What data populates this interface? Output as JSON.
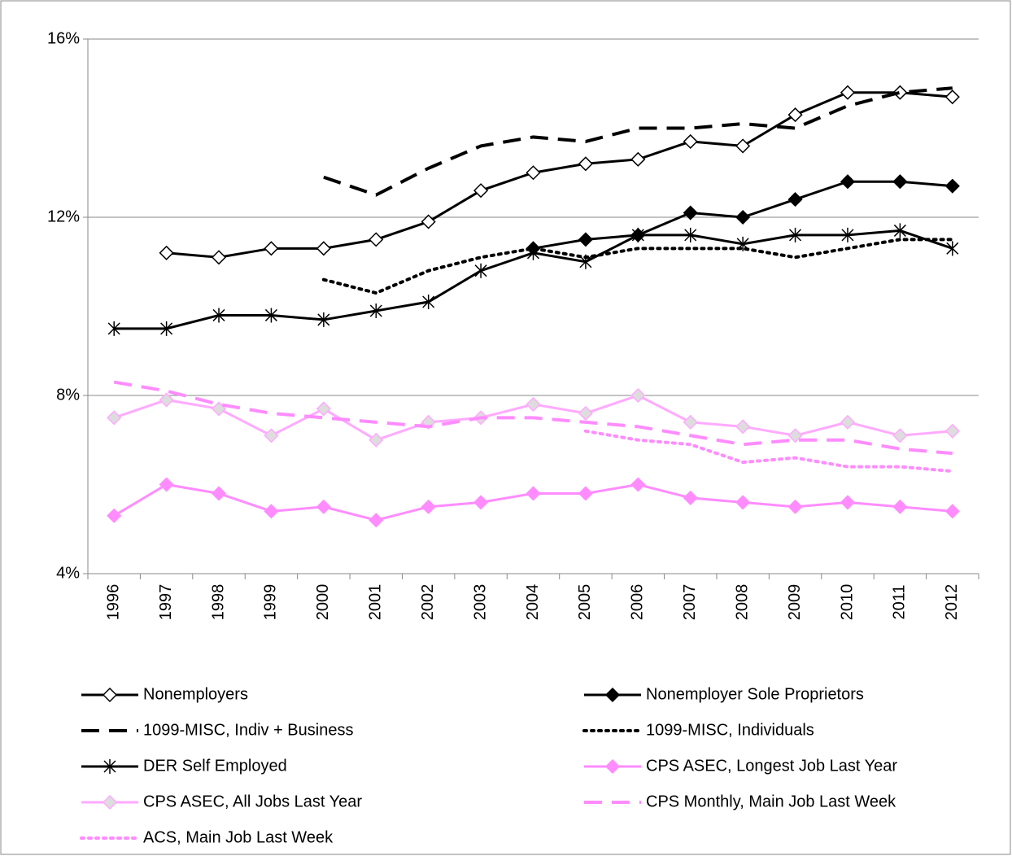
{
  "chart_data": {
    "type": "line",
    "categories": [
      "1996",
      "1997",
      "1998",
      "1999",
      "2000",
      "2001",
      "2002",
      "2003",
      "2004",
      "2005",
      "2006",
      "2007",
      "2008",
      "2009",
      "2010",
      "2011",
      "2012"
    ],
    "ylim": [
      4,
      16
    ],
    "yticks": [
      {
        "value": 4,
        "label": "4%"
      },
      {
        "value": 8,
        "label": "8%"
      },
      {
        "value": 12,
        "label": "12%"
      },
      {
        "value": 16,
        "label": "16%"
      }
    ],
    "grid": true,
    "legend": "bottom",
    "series": [
      {
        "name": "Nonemployers",
        "color": "#000000",
        "line_style": "solid",
        "marker": "diamond-open",
        "values": [
          null,
          11.2,
          11.1,
          11.3,
          11.3,
          11.5,
          11.9,
          12.6,
          13.0,
          13.2,
          13.3,
          13.7,
          13.6,
          14.3,
          14.8,
          14.8,
          14.7
        ]
      },
      {
        "name": "Nonemployer Sole Proprietors",
        "color": "#000000",
        "line_style": "solid",
        "marker": "diamond-filled",
        "values": [
          null,
          null,
          null,
          null,
          null,
          null,
          null,
          null,
          11.3,
          11.5,
          11.6,
          12.1,
          12.0,
          12.4,
          12.8,
          12.8,
          12.7
        ]
      },
      {
        "name": "1099-MISC, Indiv + Business",
        "color": "#000000",
        "line_style": "dashed",
        "marker": "none",
        "values": [
          null,
          null,
          null,
          null,
          12.9,
          12.5,
          13.1,
          13.6,
          13.8,
          13.7,
          14.0,
          14.0,
          14.1,
          14.0,
          14.5,
          14.8,
          14.9
        ]
      },
      {
        "name": "1099-MISC, Individuals",
        "color": "#000000",
        "line_style": "dotted",
        "marker": "none",
        "values": [
          null,
          null,
          null,
          null,
          10.6,
          10.3,
          10.8,
          11.1,
          11.3,
          11.1,
          11.3,
          11.3,
          11.3,
          11.1,
          11.3,
          11.5,
          11.5
        ]
      },
      {
        "name": "DER Self Employed",
        "color": "#000000",
        "line_style": "solid",
        "marker": "star",
        "values": [
          9.5,
          9.5,
          9.8,
          9.8,
          9.7,
          9.9,
          10.1,
          10.8,
          11.2,
          11.0,
          11.6,
          11.6,
          11.4,
          11.6,
          11.6,
          11.7,
          11.3
        ]
      },
      {
        "name": "CPS ASEC, Longest Job Last Year",
        "color": "#ff8cff",
        "line_style": "solid",
        "marker": "diamond-filled",
        "values": [
          5.3,
          6.0,
          5.8,
          5.4,
          5.5,
          5.2,
          5.5,
          5.6,
          5.8,
          5.8,
          6.0,
          5.7,
          5.6,
          5.5,
          5.6,
          5.5,
          5.4
        ]
      },
      {
        "name": "CPS ASEC, All Jobs Last Year",
        "color": "#ffaaff",
        "line_style": "solid",
        "marker": "diamond-gray",
        "values": [
          7.5,
          7.9,
          7.7,
          7.1,
          7.7,
          7.0,
          7.4,
          7.5,
          7.8,
          7.6,
          8.0,
          7.4,
          7.3,
          7.1,
          7.4,
          7.1,
          7.2
        ]
      },
      {
        "name": "CPS Monthly, Main Job Last Week",
        "color": "#ff8cff",
        "line_style": "dashed",
        "marker": "none",
        "values": [
          8.3,
          8.1,
          7.8,
          7.6,
          7.5,
          7.4,
          7.3,
          7.5,
          7.5,
          7.4,
          7.3,
          7.1,
          6.9,
          7.0,
          7.0,
          6.8,
          6.7
        ]
      },
      {
        "name": "ACS, Main Job Last Week",
        "color": "#ff8cff",
        "line_style": "dotted",
        "marker": "none",
        "values": [
          null,
          null,
          null,
          null,
          null,
          null,
          null,
          null,
          null,
          7.2,
          7.0,
          6.9,
          6.5,
          6.6,
          6.4,
          6.4,
          6.3
        ]
      }
    ]
  }
}
